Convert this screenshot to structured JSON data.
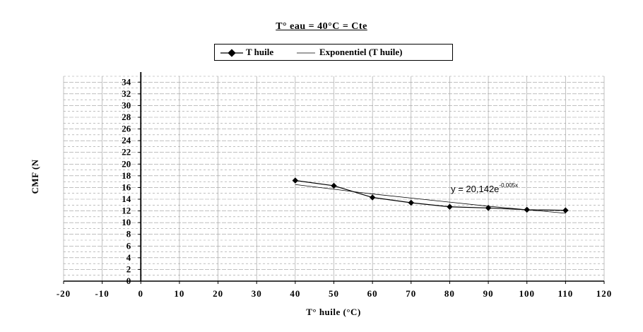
{
  "chart_data": {
    "type": "line",
    "title": "T° eau = 40°C = Cte",
    "xlabel": "T° huile (°C)",
    "ylabel": "CMF (N",
    "xlim": [
      -20,
      120
    ],
    "ylim": [
      0,
      35
    ],
    "x_ticks": [
      -20,
      -10,
      0,
      10,
      20,
      30,
      40,
      50,
      60,
      70,
      80,
      90,
      100,
      110,
      120
    ],
    "y_ticks": [
      0,
      2,
      4,
      6,
      8,
      10,
      12,
      14,
      16,
      18,
      20,
      22,
      24,
      26,
      28,
      30,
      32,
      34
    ],
    "grid": true,
    "legend_position": "top-center",
    "series": [
      {
        "name": "T huile",
        "style": "line-markers",
        "color": "#000000",
        "x": [
          40,
          50,
          60,
          70,
          80,
          90,
          100,
          110
        ],
        "y": [
          17.2,
          16.3,
          14.3,
          13.4,
          12.7,
          12.5,
          12.2,
          12.1
        ]
      },
      {
        "name": "Exponentiel (T huile)",
        "style": "line",
        "color": "#000000",
        "x": [
          40,
          50,
          60,
          70,
          80,
          90,
          100,
          110
        ],
        "y": [
          16.5,
          15.7,
          14.9,
          14.2,
          13.5,
          12.8,
          12.2,
          11.6
        ]
      }
    ],
    "annotations": [
      {
        "text": "y = 20,142e",
        "exponent": "-0,005x",
        "x": 89,
        "y": 15.2
      }
    ]
  }
}
